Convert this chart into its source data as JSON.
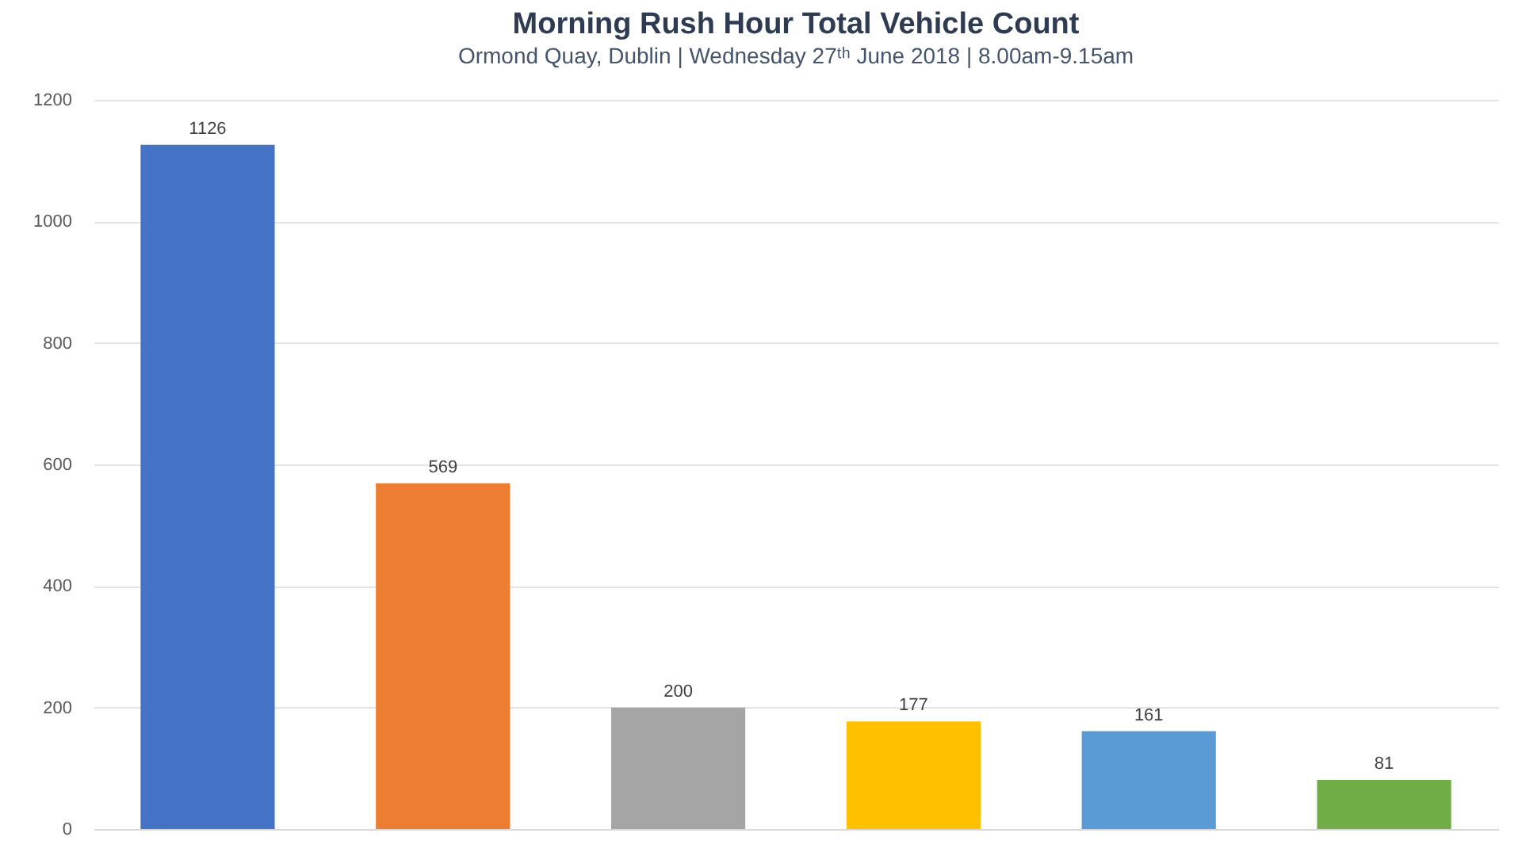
{
  "chart_data": {
    "type": "bar",
    "title": "Morning Rush Hour Total Vehicle Count",
    "subtitle": "Ormond Quay, Dublin | Wednesday 27ᵗʰ June 2018 | 8.00am-9.15am",
    "categories": [
      null,
      null,
      null,
      null,
      null,
      null
    ],
    "values": [
      1126,
      569,
      200,
      177,
      161,
      81
    ],
    "colors": [
      "#4472c4",
      "#ed7d31",
      "#a5a5a5",
      "#ffc000",
      "#5b9bd5",
      "#70ad47"
    ],
    "ylim": [
      0,
      1200
    ],
    "yticks": [
      0,
      200,
      400,
      600,
      800,
      1000,
      1200
    ],
    "grid": "y",
    "data_labels": true,
    "tick_labels": "y"
  }
}
